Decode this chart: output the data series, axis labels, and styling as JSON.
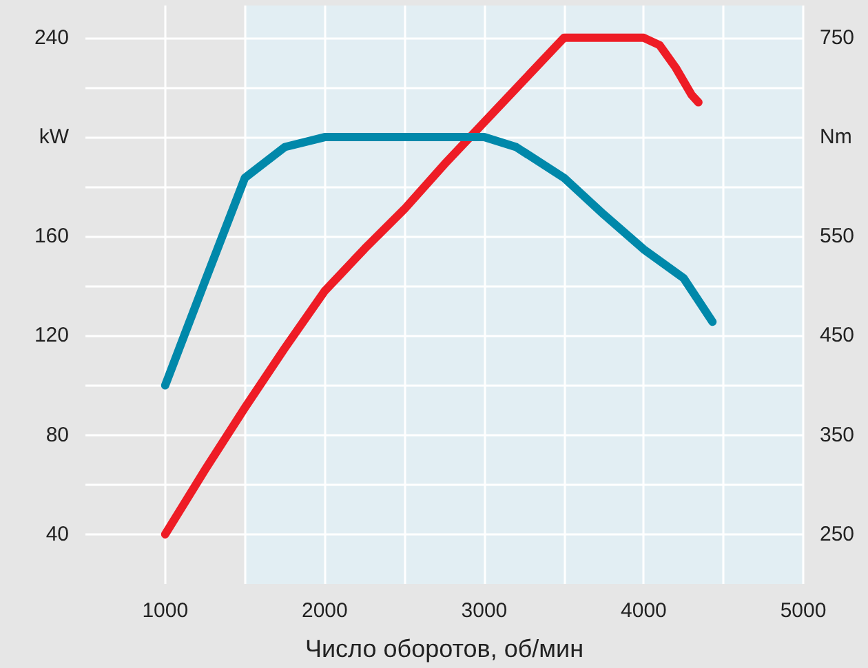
{
  "chart_data": {
    "type": "line",
    "xlabel": "Число оборотов, об/мин",
    "xlim": [
      500,
      5000
    ],
    "xticks": [
      1000,
      {
        "value": 1500,
        "label": null
      },
      2000,
      {
        "value": 2500,
        "label": null
      },
      3000,
      {
        "value": 3500,
        "label": null
      },
      4000,
      {
        "value": 4500,
        "label": null
      },
      5000
    ],
    "ylim": [
      20,
      253
    ],
    "yticks": [
      40,
      {
        "value": 60,
        "label": null
      },
      80,
      {
        "value": 100,
        "label": null
      },
      120,
      {
        "value": 140,
        "label": null
      },
      160,
      {
        "value": 180,
        "label": null
      },
      {
        "value": 200,
        "label": "kW"
      },
      {
        "value": 220,
        "label": null
      },
      240
    ],
    "y2lim": [
      200,
      782.5
    ],
    "y2ticks": [
      250,
      350,
      450,
      550,
      {
        "value": 650,
        "label": "Nm"
      },
      750
    ],
    "grid": true,
    "marker": "none",
    "line_style": "solid",
    "bands": [
      {
        "axis": "x",
        "from": 1500,
        "to": 5000,
        "color": "#e2eef3"
      }
    ],
    "series": [
      {
        "color": "#ee1c25",
        "axis": "y",
        "x": [
          1000,
          1250,
          1500,
          1750,
          2000,
          2250,
          2500,
          2750,
          3000,
          3250,
          3500,
          4000,
          4100,
          4200,
          4300,
          4343
        ],
        "values": [
          40,
          66,
          91,
          115,
          138,
          155,
          171,
          189,
          206,
          223,
          240,
          240,
          237,
          228,
          217,
          214
        ]
      },
      {
        "color": "#0088aa",
        "axis": "y2",
        "x": [
          1000,
          1250,
          1500,
          1750,
          2000,
          3000,
          3200,
          3500,
          3750,
          4000,
          4250,
          4431
        ],
        "values": [
          400,
          505,
          609,
          640,
          650,
          650,
          640,
          609,
          572,
          537,
          508,
          464
        ]
      }
    ]
  }
}
